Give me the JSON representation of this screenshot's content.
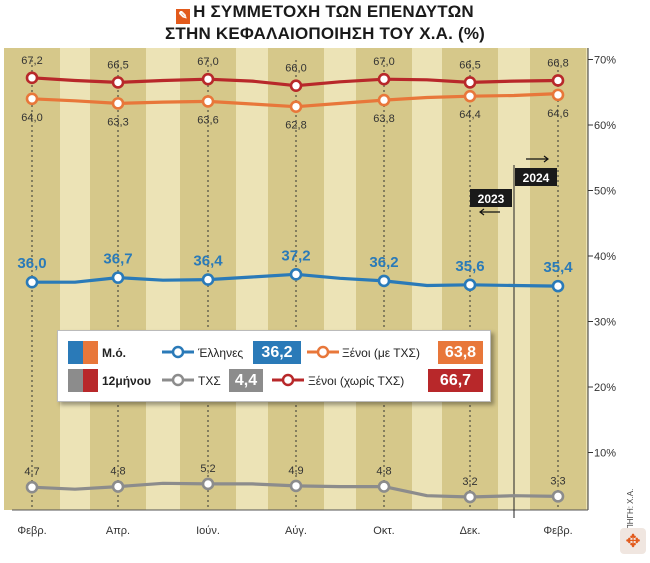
{
  "title": {
    "line1": "Η ΣΥΜΜΕΤΟΧΗ ΤΩΝ ΕΠΕΝΔΥΤΩΝ",
    "line2": "ΣΤΗΝ ΚΕΦΑΛΑΙΟΠΟΙΗΣΗ ΤΟΥ Χ.Α. (%)"
  },
  "year_markers": {
    "left": "2023",
    "right": "2024"
  },
  "source_label": "ΠΗΓΗ: Χ.Α.",
  "legend": {
    "key_mean": "Μ.ό.",
    "key_12m": "12μήνου",
    "items": [
      {
        "name": "Έλληνες",
        "value": "36,2",
        "color": "#2a7ab8"
      },
      {
        "name": "Ξένοι (με ΤΧΣ)",
        "value": "63,8",
        "color": "#e8773a"
      },
      {
        "name": "ΤΧΣ",
        "value": "4,4",
        "color": "#8c8c8c"
      },
      {
        "name": "Ξένοι (χωρίς ΤΧΣ)",
        "value": "66,7",
        "color": "#b8282a"
      }
    ]
  },
  "chart_data": {
    "type": "line",
    "title": "Η ΣΥΜΜΕΤΟΧΗ ΤΩΝ ΕΠΕΝΔΥΤΩΝ ΣΤΗΝ ΚΕΦΑΛΑΙΟΠΟΙΗΣΗ ΤΟΥ Χ.Α. (%)",
    "categories": [
      "Φεβρ.",
      "Απρ.",
      "Ιούν.",
      "Αύγ.",
      "Οκτ.",
      "Δεκ.",
      "Φεβρ."
    ],
    "ylim": [
      0,
      70
    ],
    "yticks": [
      "10%",
      "20%",
      "30%",
      "40%",
      "50%",
      "60%",
      "70%"
    ],
    "grid": false,
    "legend_position": "center-left",
    "series": [
      {
        "name": "Ξένοι (χωρίς ΤΧΣ)",
        "color": "#b8282a",
        "labels": [
          "67,2",
          "66,5",
          "67,0",
          "66,0",
          "67,0",
          "66,5",
          "66,8"
        ],
        "x": [
          0,
          1,
          2,
          3,
          4,
          5,
          6
        ],
        "values": [
          67.2,
          66.5,
          67.0,
          66.0,
          67.0,
          66.5,
          66.8
        ],
        "path_x": [
          0,
          0.5,
          1,
          1.5,
          2,
          2.5,
          3,
          3.5,
          4,
          4.5,
          5,
          5.5,
          6
        ],
        "path_y": [
          67.2,
          66.8,
          66.5,
          66.8,
          67.0,
          66.7,
          66.0,
          66.6,
          67.0,
          66.9,
          66.5,
          66.7,
          66.8
        ]
      },
      {
        "name": "Ξένοι (με ΤΧΣ)",
        "color": "#e8773a",
        "labels": [
          "64,0",
          "63,3",
          "63,6",
          "62,8",
          "63,8",
          "64,4",
          "64,6"
        ],
        "x": [
          0,
          1,
          2,
          3,
          4,
          5,
          6
        ],
        "values": [
          64.0,
          63.3,
          63.6,
          62.8,
          63.8,
          64.4,
          64.6
        ],
        "path_x": [
          0,
          0.5,
          1,
          1.5,
          2,
          2.5,
          3,
          3.5,
          4,
          4.5,
          5,
          5.5,
          6
        ],
        "path_y": [
          64.0,
          63.7,
          63.3,
          63.5,
          63.6,
          63.2,
          62.8,
          63.3,
          63.8,
          64.2,
          64.4,
          64.5,
          64.8
        ]
      },
      {
        "name": "Έλληνες",
        "color": "#2a7ab8",
        "labels": [
          "36,0",
          "36,7",
          "36,4",
          "37,2",
          "36,2",
          "35,6",
          "35,4"
        ],
        "x": [
          0,
          1,
          2,
          3,
          4,
          5,
          6
        ],
        "values": [
          36.0,
          36.7,
          36.4,
          37.2,
          36.2,
          35.6,
          35.4
        ],
        "path_x": [
          0,
          0.5,
          1,
          1.5,
          2,
          2.5,
          3,
          3.5,
          4,
          4.5,
          5,
          5.5,
          6
        ],
        "path_y": [
          36.0,
          36.0,
          36.7,
          36.3,
          36.4,
          36.8,
          37.2,
          36.6,
          36.2,
          35.5,
          35.6,
          35.5,
          35.4
        ]
      },
      {
        "name": "ΤΧΣ",
        "color": "#8c8c8c",
        "labels": [
          "4,7",
          "4,8",
          "5,2",
          "4,9",
          "4,8",
          "3,2",
          "3,3"
        ],
        "x": [
          0,
          1,
          2,
          3,
          4,
          5,
          6
        ],
        "values": [
          4.7,
          4.8,
          5.2,
          4.9,
          4.8,
          3.2,
          3.3
        ],
        "path_x": [
          0,
          0.5,
          1,
          1.5,
          2,
          2.5,
          3,
          3.5,
          4,
          4.5,
          5,
          5.5,
          6
        ],
        "path_y": [
          4.7,
          4.4,
          4.8,
          5.3,
          5.2,
          5.2,
          4.9,
          4.8,
          4.8,
          3.4,
          3.2,
          3.4,
          3.3
        ]
      }
    ]
  }
}
